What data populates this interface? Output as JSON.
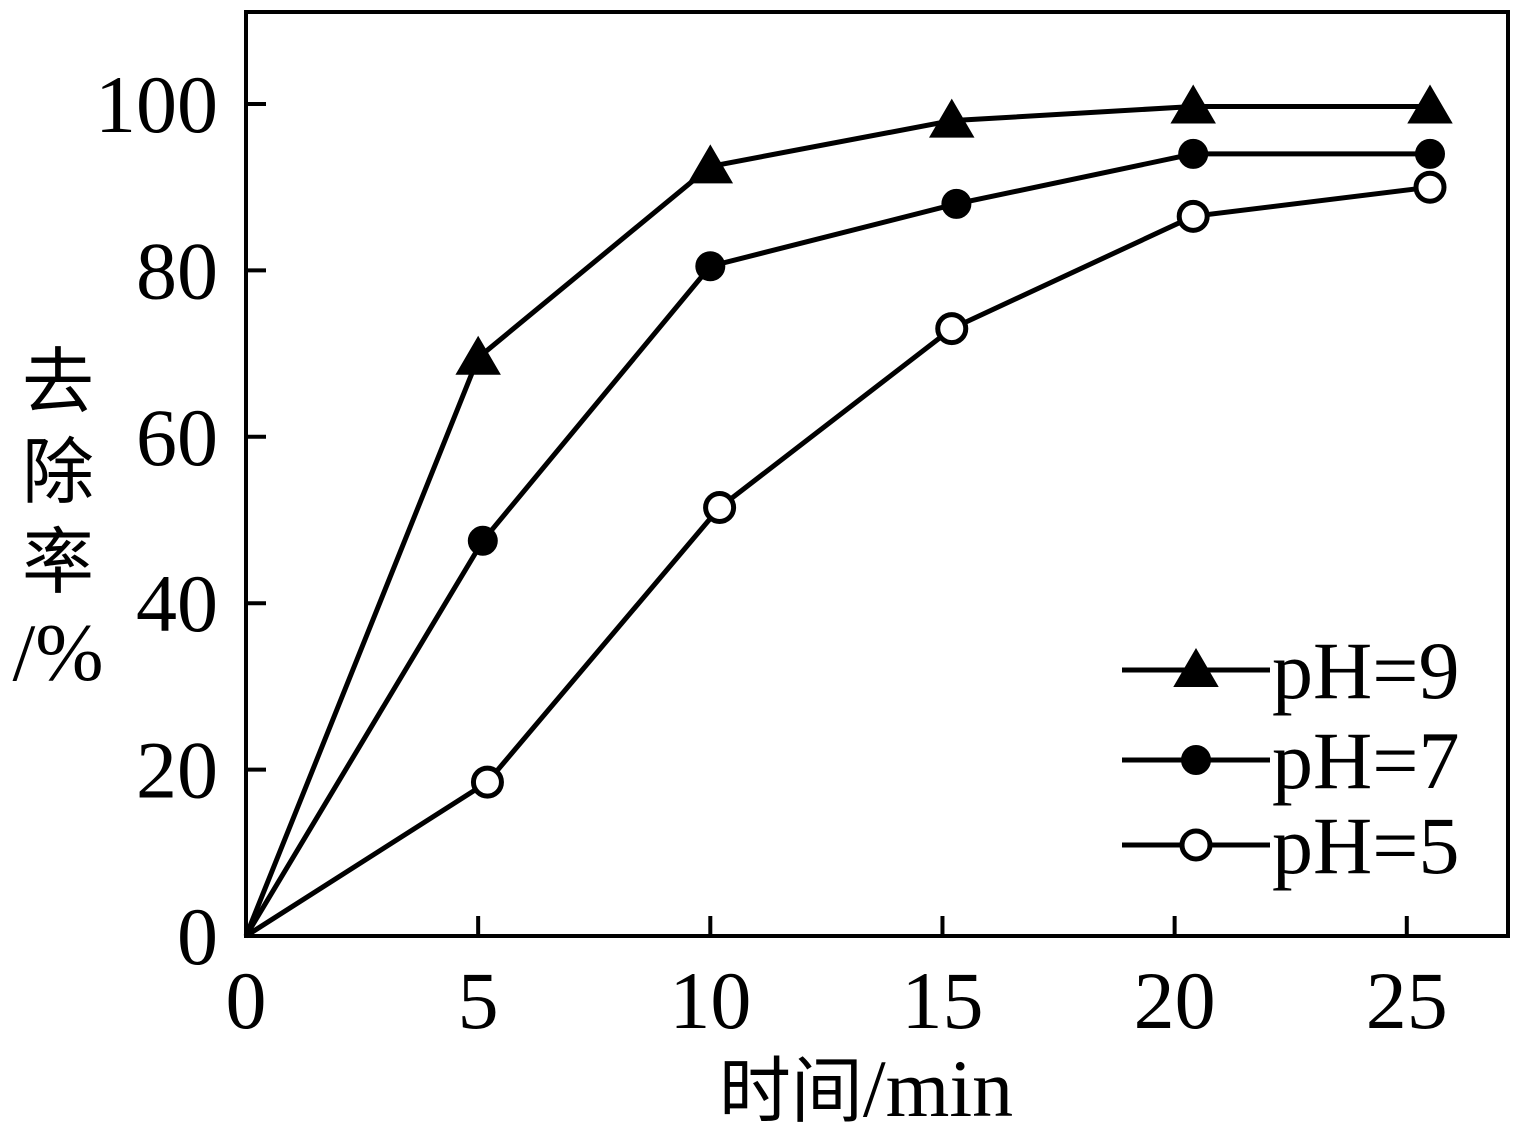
{
  "chart_data": {
    "type": "line",
    "title": "",
    "xlabel": "时间/min",
    "ylabel": "去除率/%",
    "ylabel_lines": [
      "去",
      "除",
      "率",
      "/%"
    ],
    "xlabel_parts": {
      "cjk": "时间",
      "latin": "/min"
    },
    "xlim": [
      0,
      27
    ],
    "ylim": [
      0,
      110
    ],
    "xticks": [
      0,
      5,
      10,
      15,
      20,
      25
    ],
    "yticks": [
      0,
      20,
      40,
      60,
      80,
      100
    ],
    "grid": false,
    "legend_position": "bottom-right",
    "series": [
      {
        "name": "pH=9",
        "marker": "filled-triangle",
        "points": [
          [
            0,
            0
          ],
          [
            5,
            69.5
          ],
          [
            10,
            92.5
          ],
          [
            15.2,
            98
          ],
          [
            20.4,
            99.7
          ],
          [
            25.5,
            99.7
          ]
        ]
      },
      {
        "name": "pH=7",
        "marker": "filled-circle",
        "points": [
          [
            0,
            0
          ],
          [
            5.1,
            47.5
          ],
          [
            10,
            80.5
          ],
          [
            15.3,
            88
          ],
          [
            20.4,
            94
          ],
          [
            25.5,
            94
          ]
        ]
      },
      {
        "name": "pH=5",
        "marker": "open-circle",
        "points": [
          [
            0,
            0
          ],
          [
            5.2,
            18.5
          ],
          [
            10.2,
            51.5
          ],
          [
            15.2,
            73
          ],
          [
            20.4,
            86.5
          ],
          [
            25.5,
            90
          ]
        ]
      }
    ]
  },
  "colors": {
    "line": "#000000",
    "background": "#ffffff"
  }
}
